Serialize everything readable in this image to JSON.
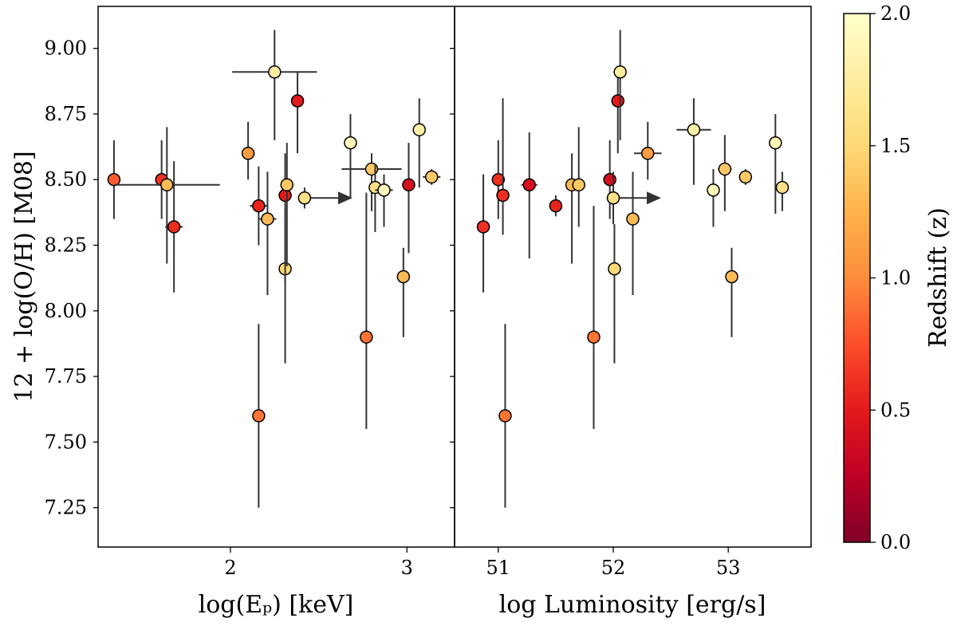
{
  "chart_data": [
    {
      "type": "scatter",
      "panel": "left",
      "xlabel": "log(Eₚ) [keV]",
      "ylabel": "12 + log(O/H) [M08]",
      "xlim": [
        1.25,
        3.27
      ],
      "ylim": [
        7.1,
        9.16
      ],
      "xticks": [
        2,
        3
      ],
      "xtick_labels": [
        "2",
        "3"
      ],
      "yticks": [
        7.25,
        7.5,
        7.75,
        8.0,
        8.25,
        8.5,
        8.75,
        9.0
      ],
      "ytick_labels": [
        "7.25",
        "7.50",
        "7.75",
        "8.00",
        "8.25",
        "8.50",
        "8.75",
        "9.00"
      ],
      "points": [
        {
          "x": 1.34,
          "y": 8.5,
          "z": 0.8,
          "xerr": 0.0,
          "yerr_lo": 0.15,
          "yerr_hi": 0.15
        },
        {
          "x": 1.61,
          "y": 8.5,
          "z": 0.6,
          "xerr": 0.0,
          "yerr_lo": 0.15,
          "yerr_hi": 0.15
        },
        {
          "x": 1.64,
          "y": 8.48,
          "z": 1.3,
          "xerr": 0.3,
          "yerr_lo": 0.3,
          "yerr_hi": 0.22
        },
        {
          "x": 1.68,
          "y": 8.32,
          "z": 0.6,
          "xerr": 0.05,
          "yerr_lo": 0.25,
          "yerr_hi": 0.25
        },
        {
          "x": 2.1,
          "y": 8.6,
          "z": 1.1,
          "xerr": 0.0,
          "yerr_lo": 0.1,
          "yerr_hi": 0.12
        },
        {
          "x": 2.16,
          "y": 8.4,
          "z": 0.55,
          "xerr": 0.05,
          "yerr_lo": 0.15,
          "yerr_hi": 0.15
        },
        {
          "x": 2.16,
          "y": 7.6,
          "z": 0.9,
          "xerr": 0.0,
          "yerr_lo": 0.35,
          "yerr_hi": 0.35
        },
        {
          "x": 2.21,
          "y": 8.35,
          "z": 1.3,
          "xerr": 0.05,
          "yerr_lo": 0.29,
          "yerr_hi": 0.18
        },
        {
          "x": 2.25,
          "y": 8.91,
          "z": 1.75,
          "xerr": 0.24,
          "yerr_lo": 0.26,
          "yerr_hi": 0.16
        },
        {
          "x": 2.31,
          "y": 8.16,
          "z": 1.5,
          "xerr": 0.0,
          "yerr_lo": 0.36,
          "yerr_hi": 0.23
        },
        {
          "x": 2.31,
          "y": 8.44,
          "z": 0.5,
          "xerr": 0.0,
          "yerr_lo": 0.34,
          "yerr_hi": 0.16
        },
        {
          "x": 2.32,
          "y": 8.48,
          "z": 1.4,
          "xerr": 0.0,
          "yerr_lo": 0.31,
          "yerr_hi": 0.16
        },
        {
          "x": 2.38,
          "y": 8.8,
          "z": 0.5,
          "xerr": 0.0,
          "yerr_lo": 0.2,
          "yerr_hi": 0.11
        },
        {
          "x": 2.42,
          "y": 8.43,
          "z": 1.6,
          "xerr": 0.0,
          "yerr_lo": 0.04,
          "yerr_hi": 0.04,
          "lower_limit": true
        },
        {
          "x": 2.68,
          "y": 8.64,
          "z": 1.9,
          "xerr": 0.0,
          "yerr_lo": 0.21,
          "yerr_hi": 0.11
        },
        {
          "x": 2.77,
          "y": 7.9,
          "z": 0.9,
          "xerr": 0.0,
          "yerr_lo": 0.35,
          "yerr_hi": 0.55
        },
        {
          "x": 2.8,
          "y": 8.54,
          "z": 1.4,
          "xerr": 0.17,
          "yerr_lo": 0.16,
          "yerr_hi": 0.06
        },
        {
          "x": 2.82,
          "y": 8.47,
          "z": 1.6,
          "xerr": 0.0,
          "yerr_lo": 0.17,
          "yerr_hi": 0.09
        },
        {
          "x": 2.87,
          "y": 8.46,
          "z": 1.9,
          "xerr": 0.05,
          "yerr_lo": 0.14,
          "yerr_hi": 0.06
        },
        {
          "x": 2.98,
          "y": 8.13,
          "z": 1.3,
          "xerr": 0.0,
          "yerr_lo": 0.23,
          "yerr_hi": 0.11
        },
        {
          "x": 3.01,
          "y": 8.48,
          "z": 0.4,
          "xerr": 0.0,
          "yerr_lo": 0.26,
          "yerr_hi": 0.16
        },
        {
          "x": 3.07,
          "y": 8.69,
          "z": 1.8,
          "xerr": 0.0,
          "yerr_lo": 0.22,
          "yerr_hi": 0.12
        },
        {
          "x": 3.14,
          "y": 8.51,
          "z": 1.4,
          "xerr": 0.05,
          "yerr_lo": 0.03,
          "yerr_hi": 0.03
        }
      ]
    },
    {
      "type": "scatter",
      "panel": "right",
      "xlabel": "log Luminosity [erg/s]",
      "ylabel": "",
      "xlim": [
        50.62,
        53.72
      ],
      "ylim": [
        7.1,
        9.16
      ],
      "xticks": [
        51,
        52,
        53
      ],
      "xtick_labels": [
        "51",
        "52",
        "53"
      ],
      "yticks": [
        7.25,
        7.5,
        7.75,
        8.0,
        8.25,
        8.5,
        8.75,
        9.0
      ],
      "points": [
        {
          "x": 50.87,
          "y": 8.32,
          "z": 0.6,
          "xerr": 0.05,
          "yerr_lo": 0.25,
          "yerr_hi": 0.2
        },
        {
          "x": 51.0,
          "y": 8.5,
          "z": 0.6,
          "xerr": 0.0,
          "yerr_lo": 0.15,
          "yerr_hi": 0.15
        },
        {
          "x": 51.04,
          "y": 8.44,
          "z": 0.6,
          "xerr": 0.0,
          "yerr_lo": 0.15,
          "yerr_hi": 0.37
        },
        {
          "x": 51.06,
          "y": 7.6,
          "z": 0.9,
          "xerr": 0.0,
          "yerr_lo": 0.35,
          "yerr_hi": 0.35
        },
        {
          "x": 51.27,
          "y": 8.48,
          "z": 0.4,
          "xerr": 0.07,
          "yerr_lo": 0.28,
          "yerr_hi": 0.2
        },
        {
          "x": 51.5,
          "y": 8.4,
          "z": 0.55,
          "xerr": 0.0,
          "yerr_lo": 0.04,
          "yerr_hi": 0.04
        },
        {
          "x": 51.64,
          "y": 8.48,
          "z": 1.3,
          "xerr": 0.0,
          "yerr_lo": 0.3,
          "yerr_hi": 0.12
        },
        {
          "x": 51.7,
          "y": 8.48,
          "z": 1.4,
          "xerr": 0.05,
          "yerr_lo": 0.16,
          "yerr_hi": 0.22
        },
        {
          "x": 51.83,
          "y": 7.9,
          "z": 0.9,
          "xerr": 0.0,
          "yerr_lo": 0.35,
          "yerr_hi": 0.5
        },
        {
          "x": 51.97,
          "y": 8.5,
          "z": 0.4,
          "xerr": 0.0,
          "yerr_lo": 0.15,
          "yerr_hi": 0.15
        },
        {
          "x": 52.0,
          "y": 8.43,
          "z": 1.6,
          "xerr": 0.0,
          "yerr_lo": 0.1,
          "yerr_hi": 0.1,
          "lower_limit": true
        },
        {
          "x": 52.01,
          "y": 8.16,
          "z": 1.5,
          "xerr": 0.0,
          "yerr_lo": 0.36,
          "yerr_hi": 0.17
        },
        {
          "x": 52.04,
          "y": 8.8,
          "z": 0.5,
          "xerr": 0.0,
          "yerr_lo": 0.2,
          "yerr_hi": 0.11
        },
        {
          "x": 52.06,
          "y": 8.91,
          "z": 1.75,
          "xerr": 0.05,
          "yerr_lo": 0.26,
          "yerr_hi": 0.16
        },
        {
          "x": 52.17,
          "y": 8.35,
          "z": 1.3,
          "xerr": 0.0,
          "yerr_lo": 0.29,
          "yerr_hi": 0.18
        },
        {
          "x": 52.3,
          "y": 8.6,
          "z": 1.1,
          "xerr": 0.12,
          "yerr_lo": 0.1,
          "yerr_hi": 0.12
        },
        {
          "x": 52.7,
          "y": 8.69,
          "z": 1.8,
          "xerr": 0.15,
          "yerr_lo": 0.21,
          "yerr_hi": 0.12
        },
        {
          "x": 52.87,
          "y": 8.46,
          "z": 1.9,
          "xerr": 0.05,
          "yerr_lo": 0.14,
          "yerr_hi": 0.08
        },
        {
          "x": 52.97,
          "y": 8.54,
          "z": 1.4,
          "xerr": 0.06,
          "yerr_lo": 0.16,
          "yerr_hi": 0.13
        },
        {
          "x": 53.03,
          "y": 8.13,
          "z": 1.3,
          "xerr": 0.0,
          "yerr_lo": 0.23,
          "yerr_hi": 0.11
        },
        {
          "x": 53.15,
          "y": 8.51,
          "z": 1.4,
          "xerr": 0.0,
          "yerr_lo": 0.03,
          "yerr_hi": 0.03
        },
        {
          "x": 53.41,
          "y": 8.64,
          "z": 1.9,
          "xerr": 0.0,
          "yerr_lo": 0.27,
          "yerr_hi": 0.11
        },
        {
          "x": 53.47,
          "y": 8.47,
          "z": 1.6,
          "xerr": 0.05,
          "yerr_lo": 0.09,
          "yerr_hi": 0.06
        }
      ]
    }
  ],
  "colorbar": {
    "label": "Redshift (z)",
    "range": [
      0.0,
      2.0
    ],
    "ticks": [
      0.0,
      0.5,
      1.0,
      1.5,
      2.0
    ],
    "tick_labels": [
      "0.0",
      "0.5",
      "1.0",
      "1.5",
      "2.0"
    ],
    "colormap": "YlOrRd_r",
    "stops": [
      "#800026",
      "#bd0026",
      "#e31a1c",
      "#fc4e2a",
      "#fd8d3c",
      "#feb24c",
      "#fed976",
      "#ffeda0",
      "#ffffcc"
    ]
  },
  "colors": {
    "errorbar": "#333333",
    "marker_edge": "#000000",
    "frame": "#000000"
  }
}
